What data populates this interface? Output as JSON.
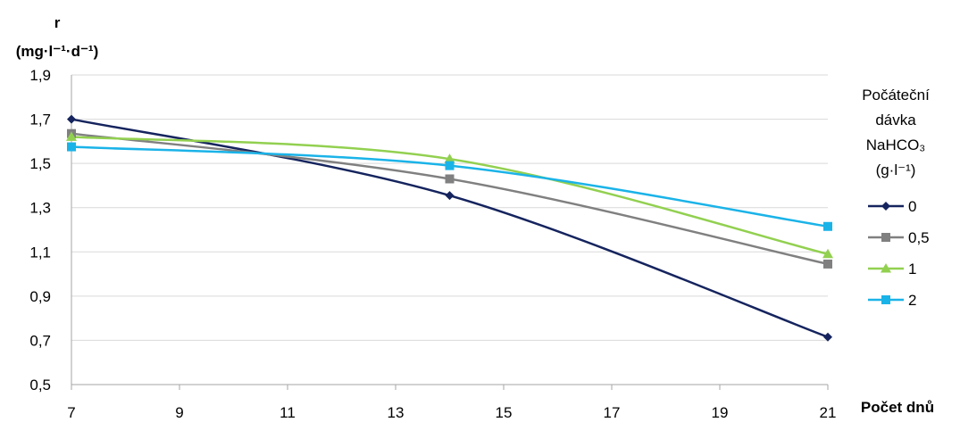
{
  "chart_data": {
    "type": "line",
    "ylabel_line1": "r",
    "ylabel_line2": "(mg·l⁻¹·d⁻¹)",
    "xlabel": "Počet dnů",
    "xlim": [
      7,
      21
    ],
    "ylim": [
      0.5,
      1.9
    ],
    "xticks": [
      "7",
      "9",
      "11",
      "13",
      "15",
      "17",
      "19",
      "21"
    ],
    "yticks": [
      "0,5",
      "0,7",
      "0,9",
      "1,1",
      "1,3",
      "1,5",
      "1,7",
      "1,9"
    ],
    "grid": "horizontal",
    "x": [
      7,
      14,
      21
    ],
    "legend": {
      "title_lines": [
        "Počáteční",
        "dávka",
        "NaHCO₃",
        "(g·l⁻¹)"
      ],
      "placement": "right"
    },
    "series": [
      {
        "name": "0",
        "values": [
          1.7,
          1.355,
          0.715
        ],
        "color": "#15245e",
        "marker": "diamond"
      },
      {
        "name": "0,5",
        "values": [
          1.635,
          1.43,
          1.045
        ],
        "color": "#808080",
        "marker": "square"
      },
      {
        "name": "1",
        "values": [
          1.62,
          1.52,
          1.09
        ],
        "color": "#92d050",
        "marker": "triangle"
      },
      {
        "name": "2",
        "values": [
          1.575,
          1.49,
          1.215
        ],
        "color": "#1ab3e8",
        "marker": "square"
      }
    ]
  }
}
